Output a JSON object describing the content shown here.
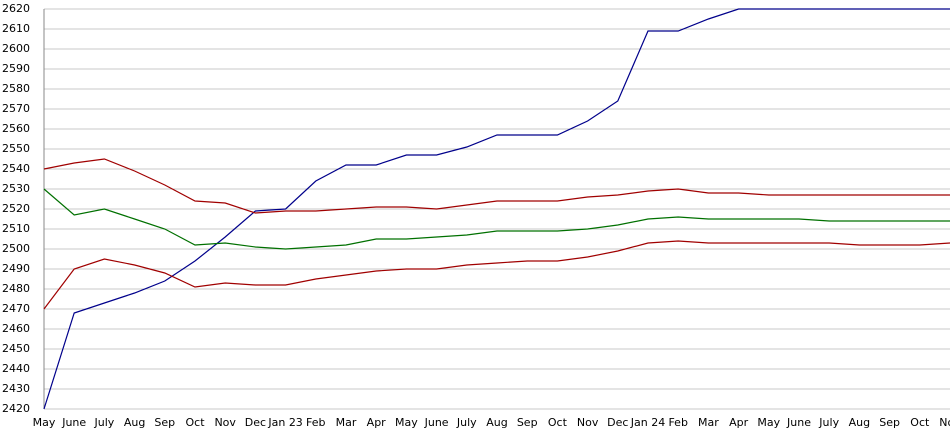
{
  "chart_data": {
    "type": "line",
    "categories": [
      "May",
      "June",
      "July",
      "Aug",
      "Sep",
      "Oct",
      "Nov",
      "Dec",
      "Jan 23",
      "Feb",
      "Mar",
      "Apr",
      "May",
      "June",
      "July",
      "Aug",
      "Sep",
      "Oct",
      "Nov",
      "Dec",
      "Jan 24",
      "Feb",
      "Mar",
      "Apr",
      "May",
      "June",
      "July",
      "Aug",
      "Sep",
      "Oct",
      "Nov"
    ],
    "series": [
      {
        "color": "#00008b",
        "values": [
          2420,
          2468,
          2473,
          2478,
          2484,
          2494,
          2506,
          2519,
          2520,
          2534,
          2542,
          2542,
          2547,
          2547,
          2551,
          2557,
          2557,
          2557,
          2564,
          2574,
          2609,
          2609,
          2615,
          2620,
          2620,
          2620,
          2620,
          2620,
          2620,
          2620,
          2620
        ]
      },
      {
        "color": "#a00000",
        "values": [
          2540,
          2543,
          2545,
          2539,
          2532,
          2524,
          2523,
          2518,
          2519,
          2519,
          2520,
          2521,
          2521,
          2520,
          2522,
          2524,
          2524,
          2524,
          2526,
          2527,
          2529,
          2530,
          2528,
          2528,
          2527,
          2527,
          2527,
          2527,
          2527,
          2527,
          2527
        ]
      },
      {
        "color": "#007000",
        "values": [
          2530,
          2517,
          2520,
          2515,
          2510,
          2502,
          2503,
          2501,
          2500,
          2501,
          2502,
          2505,
          2505,
          2506,
          2507,
          2509,
          2509,
          2509,
          2510,
          2512,
          2515,
          2516,
          2515,
          2515,
          2515,
          2515,
          2514,
          2514,
          2514,
          2514,
          2514
        ]
      },
      {
        "color": "#a00000",
        "values": [
          2470,
          2490,
          2495,
          2492,
          2488,
          2481,
          2483,
          2482,
          2482,
          2485,
          2487,
          2489,
          2490,
          2490,
          2492,
          2493,
          2494,
          2494,
          2496,
          2499,
          2503,
          2504,
          2503,
          2503,
          2503,
          2503,
          2503,
          2502,
          2502,
          2502,
          2503
        ]
      }
    ],
    "ylim": [
      2420,
      2620
    ],
    "yticks": [
      2420,
      2430,
      2440,
      2450,
      2460,
      2470,
      2480,
      2490,
      2500,
      2510,
      2520,
      2530,
      2540,
      2550,
      2560,
      2570,
      2580,
      2590,
      2600,
      2610,
      2620
    ],
    "grid": true
  }
}
